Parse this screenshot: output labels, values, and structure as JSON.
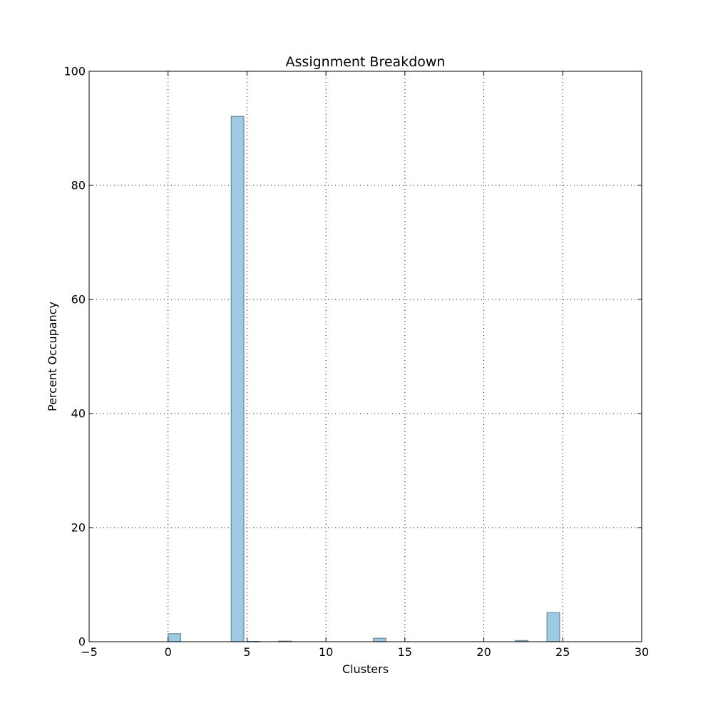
{
  "chart_data": {
    "type": "bar",
    "title": "Assignment Breakdown",
    "xlabel": "Clusters",
    "ylabel": "Percent Occupancy",
    "xlim": [
      -5,
      30
    ],
    "ylim": [
      0,
      100
    ],
    "x_ticks": [
      -5,
      0,
      5,
      10,
      15,
      20,
      25,
      30
    ],
    "y_ticks": [
      0,
      20,
      40,
      60,
      80,
      100
    ],
    "grid": true,
    "bar_width": 0.8,
    "bar_color": "#9ecae1",
    "bar_edge_color": "#6e8a99",
    "x": [
      0,
      4,
      5,
      7,
      13,
      22,
      24
    ],
    "values": [
      1.4,
      92.1,
      0.05,
      0.1,
      0.6,
      0.2,
      5.1
    ]
  }
}
